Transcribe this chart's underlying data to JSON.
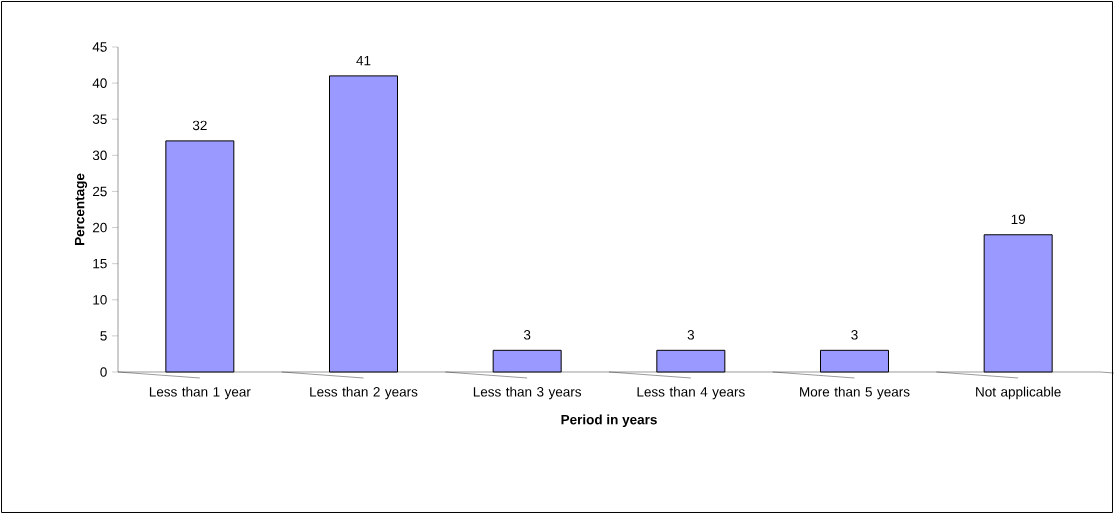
{
  "chart_data": {
    "type": "bar",
    "xlabel": "Period in years",
    "ylabel": "Percentage",
    "categories": [
      "Less than 1 year",
      "Less than 2 years",
      "Less than 3 years",
      "Less than 4 years",
      "More than 5 years",
      "Not applicable"
    ],
    "values": [
      32,
      41,
      3,
      3,
      3,
      19
    ],
    "color": "#9999ff",
    "data_labels": true,
    "ylim": [
      0,
      45
    ],
    "yticks": [
      0,
      5,
      10,
      15,
      20,
      25,
      30,
      35,
      40,
      45
    ]
  }
}
